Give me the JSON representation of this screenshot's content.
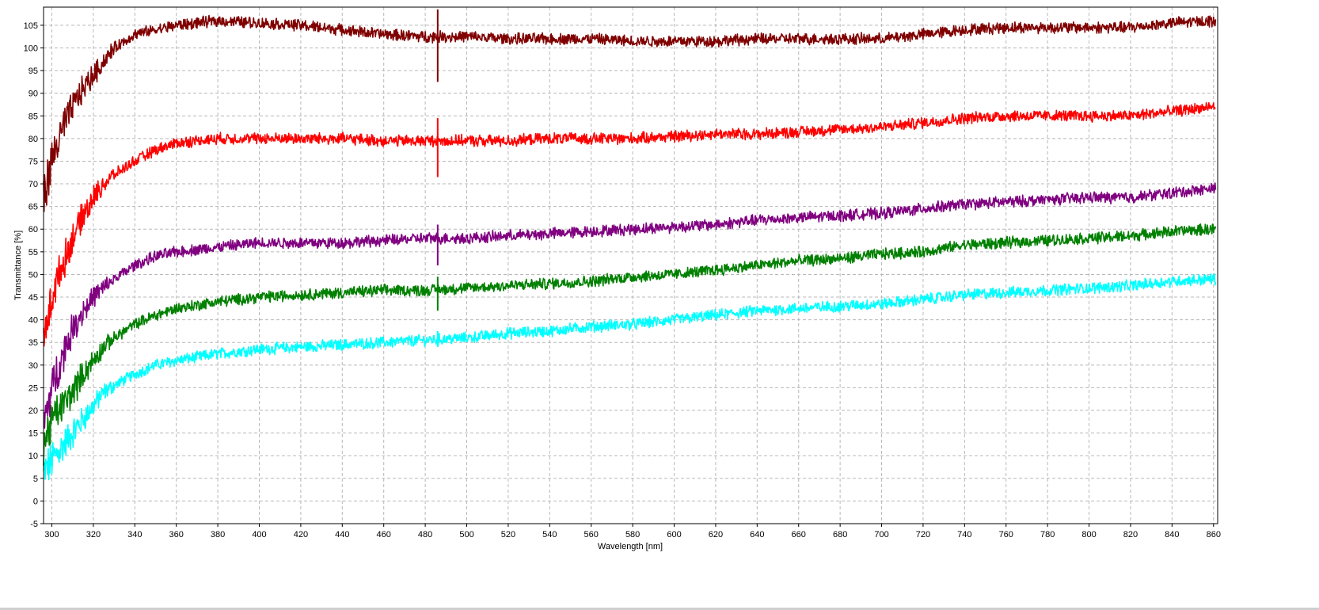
{
  "chart_data": {
    "type": "line",
    "title": "",
    "xlabel": "Wavelength [nm]",
    "ylabel": "Transmittance [%]",
    "xlim": [
      296,
      862
    ],
    "ylim": [
      -5,
      109
    ],
    "grid": true,
    "legend": "none",
    "x_ticks": [
      300,
      320,
      340,
      360,
      380,
      400,
      420,
      440,
      460,
      480,
      500,
      520,
      540,
      560,
      580,
      600,
      620,
      640,
      660,
      680,
      700,
      720,
      740,
      760,
      780,
      800,
      820,
      840,
      860
    ],
    "y_ticks": [
      -5,
      0,
      5,
      10,
      15,
      20,
      25,
      30,
      35,
      40,
      45,
      50,
      55,
      60,
      65,
      70,
      75,
      80,
      85,
      90,
      95,
      100,
      105
    ],
    "series": [
      {
        "color": "#800000",
        "x": [
          296,
          300,
          305,
          310,
          315,
          320,
          325,
          330,
          340,
          350,
          360,
          380,
          400,
          420,
          440,
          460,
          480,
          500,
          520,
          540,
          560,
          580,
          600,
          620,
          640,
          660,
          680,
          700,
          720,
          740,
          760,
          780,
          800,
          820,
          840,
          860
        ],
        "y": [
          67,
          75,
          82,
          87,
          91,
          94,
          97,
          100,
          103,
          104,
          105,
          106,
          105.5,
          105,
          104,
          103,
          102.5,
          102.5,
          102,
          102,
          102,
          101.5,
          101.5,
          101.5,
          102,
          102,
          102,
          102,
          103,
          104,
          104.5,
          104.5,
          104.5,
          104.5,
          105.5,
          106
        ]
      },
      {
        "color": "#ff0000",
        "x": [
          296,
          300,
          305,
          310,
          315,
          320,
          325,
          330,
          340,
          350,
          360,
          380,
          400,
          420,
          440,
          460,
          480,
          500,
          520,
          540,
          560,
          580,
          600,
          620,
          640,
          660,
          680,
          700,
          720,
          740,
          760,
          780,
          800,
          820,
          840,
          860
        ],
        "y": [
          35,
          45,
          52,
          58,
          63,
          67,
          70,
          72,
          75,
          77.5,
          79,
          80,
          80,
          80,
          80,
          79.5,
          79.5,
          79.5,
          79.5,
          80,
          80,
          80,
          80.5,
          81,
          81,
          81.5,
          82,
          82.5,
          83.5,
          84.5,
          85,
          85,
          85,
          85,
          86,
          87
        ]
      },
      {
        "color": "#800080",
        "x": [
          296,
          300,
          305,
          310,
          315,
          320,
          325,
          330,
          340,
          350,
          360,
          380,
          400,
          420,
          440,
          460,
          480,
          500,
          520,
          540,
          560,
          580,
          600,
          620,
          640,
          660,
          680,
          700,
          720,
          740,
          760,
          780,
          800,
          820,
          840,
          860
        ],
        "y": [
          17,
          25,
          32,
          38,
          42,
          45,
          47,
          49,
          52,
          54,
          55,
          56,
          57,
          57,
          57,
          57.5,
          58,
          58,
          58.5,
          59,
          59.5,
          60,
          60.5,
          61,
          62,
          62.5,
          63,
          63.5,
          64.5,
          65.5,
          66,
          66.5,
          67,
          67,
          68,
          69
        ]
      },
      {
        "color": "#008000",
        "x": [
          296,
          300,
          305,
          310,
          315,
          320,
          325,
          330,
          340,
          350,
          360,
          380,
          400,
          420,
          440,
          460,
          480,
          500,
          520,
          540,
          560,
          580,
          600,
          620,
          640,
          660,
          680,
          700,
          720,
          740,
          760,
          780,
          800,
          820,
          840,
          860
        ],
        "y": [
          12,
          18,
          21,
          24,
          28,
          31,
          34,
          36,
          39,
          41,
          42.5,
          44,
          45,
          45.5,
          46,
          46.5,
          46.5,
          47,
          47.5,
          48,
          48.5,
          49.5,
          50,
          51,
          52,
          53,
          53.5,
          54.5,
          55,
          56.5,
          57,
          57.5,
          58,
          58.5,
          59.5,
          60
        ]
      },
      {
        "color": "#00ffff",
        "x": [
          296,
          300,
          305,
          310,
          315,
          320,
          325,
          330,
          340,
          350,
          360,
          380,
          400,
          420,
          440,
          460,
          480,
          500,
          520,
          540,
          560,
          580,
          600,
          620,
          640,
          660,
          680,
          700,
          720,
          740,
          760,
          780,
          800,
          820,
          840,
          860
        ],
        "y": [
          6,
          9,
          12,
          15,
          18,
          21,
          24,
          25.5,
          28,
          30,
          31,
          32.5,
          33.5,
          34,
          34.5,
          35,
          35.5,
          36,
          37,
          37.5,
          38.5,
          39,
          40,
          41,
          42,
          42.5,
          43,
          43.5,
          44.5,
          45.5,
          46,
          46.5,
          47,
          47.5,
          48.5,
          49
        ]
      }
    ],
    "spikes": [
      {
        "series": 0,
        "x": 486,
        "low": 92.5,
        "high": 108.5
      },
      {
        "series": 1,
        "x": 486,
        "low": 71.5,
        "high": 84.5
      },
      {
        "series": 2,
        "x": 486,
        "low": 52,
        "high": 61
      },
      {
        "series": 3,
        "x": 486,
        "low": 42,
        "high": 49.5
      },
      {
        "series": 4,
        "x": 486,
        "low": 34,
        "high": 37.5
      }
    ]
  }
}
